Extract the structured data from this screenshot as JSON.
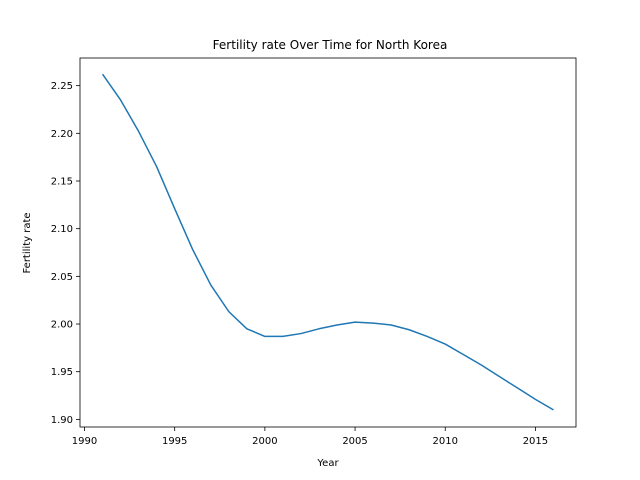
{
  "chart_data": {
    "type": "line",
    "title": "Fertility rate Over Time for North Korea",
    "xlabel": "Year",
    "ylabel": "Fertility rate",
    "xlim": [
      1989.75,
      2017.25
    ],
    "ylim": [
      1.892,
      2.279
    ],
    "x_ticks": [
      1990,
      1995,
      2000,
      2005,
      2010,
      2015
    ],
    "y_ticks": [
      1.9,
      1.95,
      2.0,
      2.05,
      2.1,
      2.15,
      2.2,
      2.25
    ],
    "grid": false,
    "colors": {
      "line": "#1f77b4"
    },
    "series": [
      {
        "x": [
          1991,
          1992,
          1993,
          1994,
          1995,
          1996,
          1997,
          1998,
          1999,
          2000,
          2001,
          2002,
          2003,
          2004,
          2005,
          2006,
          2007,
          2008,
          2009,
          2010,
          2011,
          2012,
          2013,
          2014,
          2015,
          2016
        ],
        "y": [
          2.262,
          2.235,
          2.202,
          2.165,
          2.121,
          2.078,
          2.041,
          2.013,
          1.995,
          1.987,
          1.987,
          1.99,
          1.995,
          1.999,
          2.002,
          2.001,
          1.999,
          1.994,
          1.987,
          1.979,
          1.968,
          1.957,
          1.945,
          1.933,
          1.921,
          1.91
        ]
      }
    ]
  }
}
